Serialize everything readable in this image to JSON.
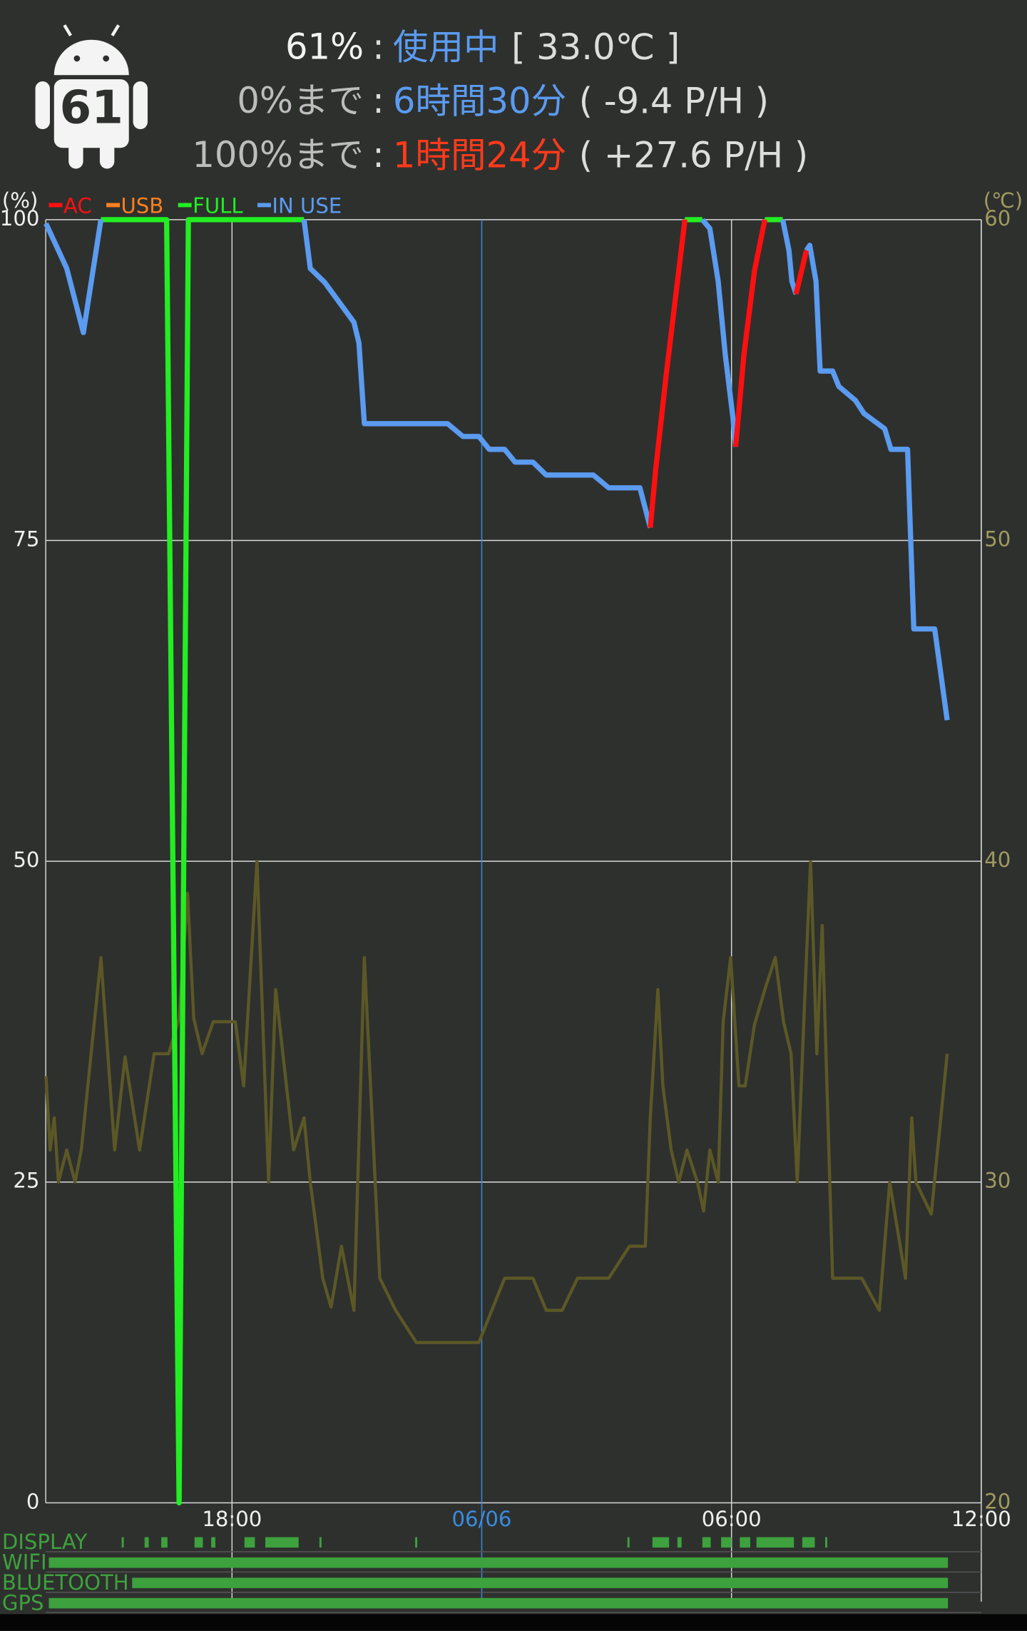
{
  "header": {
    "icon_text": "61",
    "separator": ":",
    "lines": [
      {
        "label": "61%",
        "label_color": "#f2f2f2",
        "value": "使用中",
        "value_color": "#5b9bf0",
        "extra": "[ 33.0℃ ]"
      },
      {
        "label": "0%まで",
        "label_color": "#bdbdbd",
        "value": "6時間30分",
        "value_color": "#5b9bf0",
        "extra": "( -9.4 P/H )"
      },
      {
        "label": "100%まで",
        "label_color": "#bdbdbd",
        "value": "1時間24分",
        "value_color": "#ff3a1a",
        "extra": "( +27.6 P/H )"
      }
    ]
  },
  "chart_data": {
    "type": "line",
    "y_label": "(%)",
    "y2_label": "(℃)",
    "xlim": [
      13.525,
      36
    ],
    "ylim": [
      0,
      100
    ],
    "y2lim": [
      20,
      60
    ],
    "xticks": [
      {
        "value": 18,
        "label": "18:00"
      },
      {
        "value": 24,
        "label": "06/06",
        "color": "#3a8be0"
      },
      {
        "value": 30,
        "label": "06:00"
      },
      {
        "value": 36,
        "label": "12:00"
      }
    ],
    "yticks": [
      0,
      25,
      50,
      75,
      100
    ],
    "y2ticks": [
      20,
      30,
      40,
      50,
      60
    ],
    "grid": true,
    "legend": "top-left",
    "series": [
      {
        "name": "AC",
        "color": "#ff1010",
        "x": [
          28.05,
          28.18,
          28.43,
          28.88,
          null,
          30.1,
          30.3,
          30.55,
          30.8,
          null,
          31.55,
          31.8
        ],
        "values": [
          76,
          80.6,
          87.9,
          100,
          null,
          82.3,
          89.5,
          96,
          100,
          null,
          94.2,
          97.6
        ]
      },
      {
        "name": "USB",
        "color": "#ff7f1e",
        "x": [],
        "values": []
      },
      {
        "name": "FULL",
        "color": "#22ee22",
        "x": [
          14.85,
          16.43,
          16.73,
          16.95,
          19.73,
          null,
          28.88,
          29.3,
          null,
          30.8,
          31.23
        ],
        "values": [
          100,
          100,
          0,
          100,
          100,
          null,
          100,
          100,
          null,
          100,
          100
        ]
      },
      {
        "name": "IN USE",
        "color": "#5b9bf0",
        "x": [
          13.53,
          14.03,
          14.43,
          14.85,
          null,
          19.73,
          19.88,
          20.23,
          20.93,
          21.05,
          21.18,
          23.18,
          23.55,
          23.93,
          24.18,
          24.55,
          24.8,
          25.23,
          25.55,
          26.68,
          27.05,
          27.8,
          28.05,
          null,
          29.3,
          29.48,
          29.68,
          29.85,
          30.03,
          30.1,
          null,
          31.23,
          31.38,
          31.45,
          31.55,
          null,
          31.8,
          31.88,
          32.03,
          32.13,
          32.43,
          32.58,
          32.98,
          33.18,
          33.68,
          33.83,
          34.23,
          34.38,
          34.88,
          35.18
        ],
        "values": [
          99.7,
          96.2,
          91.2,
          100,
          null,
          100,
          96.2,
          95.1,
          92.0,
          90.4,
          84.1,
          84.1,
          83.1,
          83.1,
          82.1,
          82.1,
          81.1,
          81.1,
          80.1,
          80.1,
          79.1,
          79.1,
          76.0,
          null,
          100,
          99.3,
          95.2,
          89.5,
          84.7,
          82.3,
          null,
          100,
          97.6,
          95.2,
          94.2,
          null,
          97.6,
          98.0,
          95.2,
          88.2,
          88.2,
          87.0,
          85.9,
          84.9,
          83.7,
          82.1,
          82.1,
          68.1,
          68.1,
          61.0
        ]
      },
      {
        "name": "TEMP",
        "color": "#5c5826",
        "axis": "y2",
        "in_legend": false,
        "x": [
          13.53,
          13.63,
          13.73,
          13.83,
          14.03,
          14.23,
          14.38,
          14.85,
          15.18,
          15.43,
          15.78,
          16.13,
          16.48,
          16.73,
          16.93,
          17.08,
          17.28,
          17.55,
          18.08,
          18.28,
          18.6,
          18.88,
          19.05,
          19.48,
          19.73,
          19.88,
          20.18,
          20.38,
          20.63,
          20.93,
          21.18,
          21.55,
          21.93,
          22.43,
          23.93,
          24.55,
          25.23,
          25.55,
          25.93,
          26.3,
          27.05,
          27.55,
          27.93,
          28.05,
          28.23,
          28.35,
          28.55,
          28.73,
          28.93,
          29.18,
          29.33,
          29.48,
          29.68,
          29.8,
          29.98,
          30.18,
          30.33,
          30.55,
          30.8,
          31.05,
          31.25,
          31.43,
          31.58,
          31.8,
          31.9,
          32.05,
          32.18,
          32.43,
          33.13,
          33.55,
          33.8,
          34.18,
          34.33,
          34.43,
          34.8,
          35.18
        ],
        "values": [
          33.3,
          31.0,
          32.0,
          30.0,
          31.0,
          30.0,
          31.0,
          37.0,
          31.0,
          33.9,
          31.0,
          34.0,
          34.0,
          35.1,
          39.0,
          35.1,
          34.0,
          35.0,
          35.0,
          33.0,
          40.0,
          30.0,
          36.0,
          31.0,
          32.0,
          30.0,
          27.0,
          26.1,
          28.0,
          26.0,
          37.0,
          27.0,
          26.0,
          25.0,
          25.0,
          27.0,
          27.0,
          26.0,
          26.0,
          27.0,
          27.0,
          28.0,
          28.0,
          32.0,
          36.0,
          33.0,
          31.0,
          30.0,
          31.0,
          30.0,
          29.1,
          31.0,
          30.0,
          35.0,
          37.0,
          33.0,
          33.0,
          34.9,
          36.0,
          37.0,
          35.0,
          34.0,
          30.0,
          37.0,
          40.0,
          34.0,
          38.0,
          27.0,
          27.0,
          26.0,
          30.0,
          27.0,
          32.0,
          30.0,
          29.0,
          34.0
        ]
      }
    ],
    "status_color": "#3da13d",
    "status_rows": [
      {
        "label": "DISPLAY",
        "on": [
          [
            15.35,
            15.4
          ],
          [
            15.9,
            16.0
          ],
          [
            16.3,
            16.45
          ],
          [
            17.1,
            17.3
          ],
          [
            17.5,
            17.6
          ],
          [
            18.3,
            18.55
          ],
          [
            18.8,
            19.6
          ],
          [
            20.1,
            20.15
          ],
          [
            22.4,
            22.45
          ],
          [
            27.5,
            27.55
          ],
          [
            28.1,
            28.5
          ],
          [
            28.7,
            28.8
          ],
          [
            29.3,
            29.5
          ],
          [
            29.75,
            30.0
          ],
          [
            30.2,
            30.45
          ],
          [
            30.6,
            31.5
          ],
          [
            31.7,
            32.0
          ],
          [
            32.25,
            32.3
          ]
        ]
      },
      {
        "label": "WIFI",
        "on": [
          [
            13.6,
            35.2
          ]
        ]
      },
      {
        "label": "BLUETOOTH",
        "on": [
          [
            15.6,
            35.2
          ]
        ]
      },
      {
        "label": "GPS",
        "on": [
          [
            13.6,
            35.2
          ]
        ]
      }
    ]
  }
}
